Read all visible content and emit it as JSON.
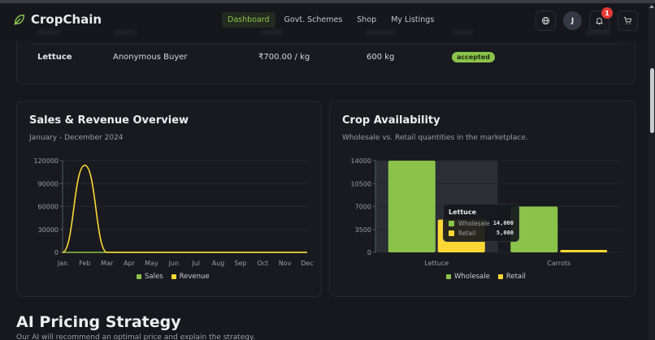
{
  "header": {
    "brand": "CropChain",
    "nav": [
      {
        "label": "Dashboard",
        "active": true
      },
      {
        "label": "Govt. Schemes",
        "active": false
      },
      {
        "label": "Shop",
        "active": false
      },
      {
        "label": "My Listings",
        "active": false
      }
    ],
    "icons": [
      "globe-icon",
      "avatar",
      "bell-icon",
      "cart-icon"
    ],
    "avatar_initial": "J",
    "notification_count": "1"
  },
  "orders_table": {
    "rows": [
      {
        "crop": "Lettuce",
        "buyer": "Anonymous Buyer",
        "price": "₹700.00 / kg",
        "quantity": "600 kg",
        "status": "accepted"
      }
    ]
  },
  "sales_card": {
    "title": "Sales & Revenue Overview",
    "subtitle": "January - December 2024",
    "legend": [
      {
        "label": "Sales",
        "color": "#8bc34a"
      },
      {
        "label": "Revenue",
        "color": "#fdd835"
      }
    ]
  },
  "availability_card": {
    "title": "Crop Availability",
    "subtitle": "Wholesale vs. Retail quantities in the marketplace.",
    "legend": [
      {
        "label": "Wholesale",
        "color": "#8bc34a"
      },
      {
        "label": "Retail",
        "color": "#fdd835"
      }
    ],
    "tooltip": {
      "title": "Lettuce",
      "rows": [
        {
          "label": "Wholesale",
          "value": "14,000",
          "color": "#8bc34a"
        },
        {
          "label": "Retail",
          "value": "5,000",
          "color": "#fdd835"
        }
      ]
    }
  },
  "ai_section": {
    "title": "AI Pricing Strategy",
    "subtitle": "Our AI will recommend an optimal price and explain the strategy."
  },
  "colors": {
    "accent": "#8bc34a",
    "secondary": "#fdd835",
    "background": "#16181d",
    "card": "#181a1f",
    "badge": "#e53935"
  },
  "chart_data": [
    {
      "type": "line",
      "title": "Sales & Revenue Overview",
      "subtitle": "January - December 2024",
      "categories": [
        "Jan",
        "Feb",
        "Mar",
        "Apr",
        "May",
        "Jun",
        "Jul",
        "Aug",
        "Sep",
        "Oct",
        "Nov",
        "Dec"
      ],
      "series": [
        {
          "name": "Sales",
          "color": "#8bc34a",
          "values": [
            0,
            0,
            0,
            0,
            0,
            0,
            0,
            0,
            0,
            0,
            0,
            0
          ]
        },
        {
          "name": "Revenue",
          "color": "#fdd835",
          "values": [
            0,
            114000,
            0,
            0,
            0,
            0,
            0,
            0,
            0,
            0,
            0,
            0
          ]
        }
      ],
      "yticks": [
        "0",
        "30000",
        "60000",
        "90000",
        "120000"
      ],
      "ylim": [
        0,
        120000
      ],
      "xlabel": "",
      "ylabel": "",
      "grid": true,
      "legend_position": "bottom"
    },
    {
      "type": "bar",
      "title": "Crop Availability",
      "subtitle": "Wholesale vs. Retail quantities in the marketplace.",
      "categories": [
        "Lettuce",
        "Carrots"
      ],
      "series": [
        {
          "name": "Wholesale",
          "color": "#8bc34a",
          "values": [
            14000,
            7000
          ]
        },
        {
          "name": "Retail",
          "color": "#fdd835",
          "values": [
            5000,
            300
          ]
        }
      ],
      "yticks": [
        "0",
        "3500",
        "7000",
        "10500",
        "14000"
      ],
      "ylim": [
        0,
        14000
      ],
      "xlabel": "",
      "ylabel": "",
      "grid": true,
      "legend_position": "bottom",
      "hovered_category": "Lettuce"
    }
  ]
}
